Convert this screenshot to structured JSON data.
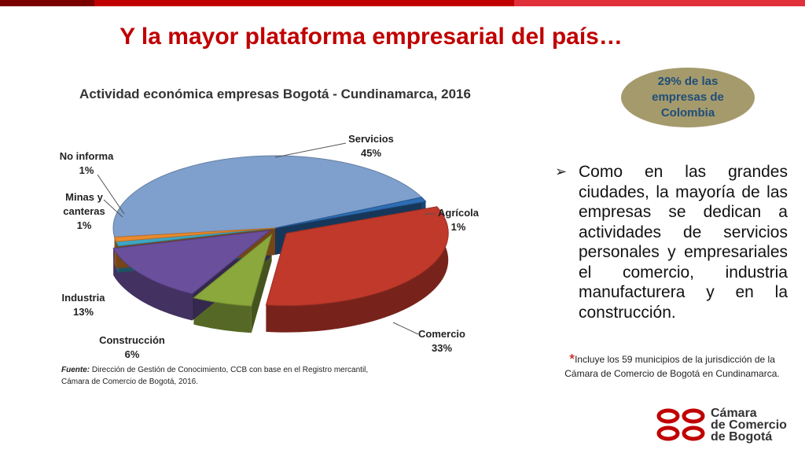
{
  "slide": {
    "title": "Y la mayor plataforma empresarial del país…",
    "topbar_colors": [
      "#7a0000",
      "#c00000",
      "#e0303a"
    ]
  },
  "chart_data": {
    "type": "pie",
    "title": "Actividad económica empresas Bogotá - Cundinamarca, 2016",
    "slices": [
      {
        "name": "Servicios",
        "value": 45,
        "label": "45%",
        "color": "#7f9fcc"
      },
      {
        "name": "Agrícola",
        "value": 1,
        "label": "1%",
        "color": "#2e6db4"
      },
      {
        "name": "Comercio",
        "value": 33,
        "label": "33%",
        "color": "#c0392b"
      },
      {
        "name": "Construcción",
        "value": 6,
        "label": "6%",
        "color": "#8aa83b"
      },
      {
        "name": "Industria",
        "value": 13,
        "label": "13%",
        "color": "#6a4f9c"
      },
      {
        "name": "Minas y canteras",
        "value": 1,
        "label": "1%",
        "color": "#3ea6c4"
      },
      {
        "name": "No informa",
        "value": 1,
        "label": "1%",
        "color": "#e98a2e"
      }
    ]
  },
  "labels": {
    "servicios": {
      "name": "Servicios",
      "pct": "45%"
    },
    "agricola": {
      "name": "Agrícola",
      "pct": "1%"
    },
    "comercio": {
      "name": "Comercio",
      "pct": "33%"
    },
    "construccion": {
      "name": "Construcción",
      "pct": "6%"
    },
    "industria": {
      "name": "Industria",
      "pct": "13%"
    },
    "minas": {
      "line1": "Minas y",
      "line2": "canteras",
      "pct": "1%"
    },
    "noinforma": {
      "name": "No informa",
      "pct": "1%"
    }
  },
  "badge": {
    "line1": "29%  de las",
    "line2": "empresas de",
    "line3": "Colombia"
  },
  "bullet": {
    "text": "Como en las grandes ciudades, la mayoría de las empresas se dedican a actividades de servicios personales y empresariales el comercio, industria manufacturera y en la construcción."
  },
  "note": {
    "star": "*",
    "line1": "Incluye los 59 municipios de la jurisdicción de la",
    "line2": "Cámara de Comercio de Bogotá en Cundinamarca."
  },
  "source": {
    "label": "Fuente:",
    "line1": " Dirección de Gestión de Conocimiento, CCB con base en el Registro mercantil,",
    "line2": "Cámara de Comercio  de Bogotá, 2016."
  },
  "logo": {
    "line1": "Cámara",
    "line2": "de Comercio",
    "line3": "de Bogotá",
    "color": "#c00000"
  }
}
